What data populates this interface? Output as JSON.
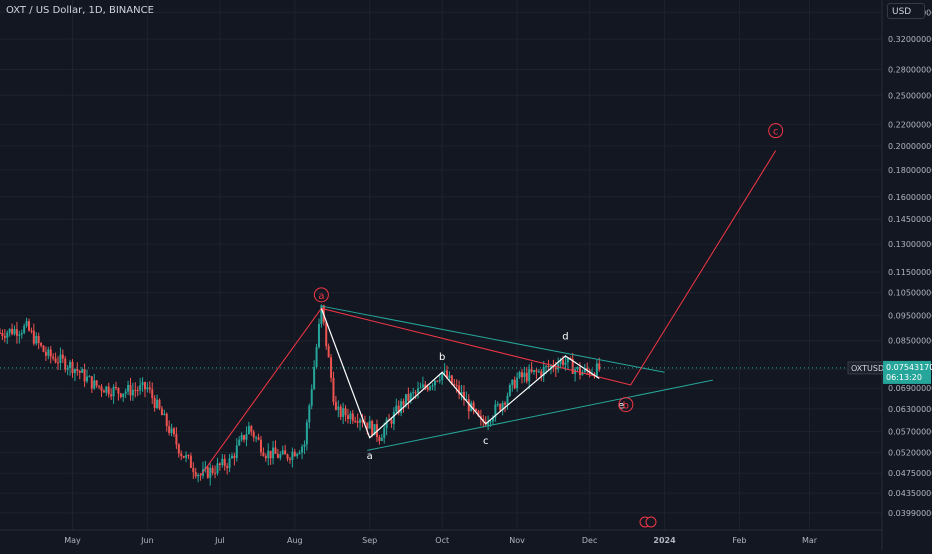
{
  "header": {
    "title": "OXT / US Dollar, 1D, BINANCE",
    "currency_button": "USD"
  },
  "price_tag": {
    "symbol": "OXTUSD",
    "price": "0.07543170",
    "countdown": "06:13:20"
  },
  "colors": {
    "background": "#131722",
    "grid": "#1e222d",
    "up": "#26a69a",
    "down": "#ef5350",
    "wave_pattern": "#ffffff",
    "triangle_lines": "#26a69a",
    "projection": "#f23645",
    "price_tag": "#26a69a"
  },
  "chart_data": {
    "type": "candlestick",
    "title": "OXT / US Dollar, 1D, BINANCE",
    "y_scale": "log",
    "ylim": [
      0.037,
      0.38
    ],
    "y_ticks": [
      "0.36000000",
      "0.32000000",
      "0.28000000",
      "0.25000000",
      "0.22000000",
      "0.20000000",
      "0.18000000",
      "0.16000000",
      "0.14500000",
      "0.13000000",
      "0.11500000",
      "0.10500000",
      "0.09500000",
      "0.08500000",
      "0.07500000",
      "0.06900000",
      "0.06300000",
      "0.05700000",
      "0.05200000",
      "0.04750000",
      "0.04350000",
      "0.03990000"
    ],
    "x_ticks": [
      "May",
      "Jun",
      "Jul",
      "Aug",
      "Sep",
      "Oct",
      "Nov",
      "Dec",
      "2024",
      "Feb",
      "Mar"
    ],
    "x_range": [
      "2023-04-01",
      "2024-03-31"
    ],
    "price_path": [
      [
        "2023-04-01",
        0.088
      ],
      [
        "2023-04-12",
        0.09
      ],
      [
        "2023-04-20",
        0.08
      ],
      [
        "2023-05-01",
        0.076
      ],
      [
        "2023-05-10",
        0.07
      ],
      [
        "2023-05-20",
        0.068
      ],
      [
        "2023-06-01",
        0.069
      ],
      [
        "2023-06-08",
        0.06
      ],
      [
        "2023-06-15",
        0.052
      ],
      [
        "2023-06-23",
        0.047
      ],
      [
        "2023-07-05",
        0.05
      ],
      [
        "2023-07-13",
        0.058
      ],
      [
        "2023-07-20",
        0.052
      ],
      [
        "2023-07-28",
        0.051
      ],
      [
        "2023-08-05",
        0.054
      ],
      [
        "2023-08-12",
        0.098
      ],
      [
        "2023-08-18",
        0.062
      ],
      [
        "2023-08-28",
        0.061
      ],
      [
        "2023-09-05",
        0.056
      ],
      [
        "2023-09-15",
        0.065
      ],
      [
        "2023-09-25",
        0.07
      ],
      [
        "2023-10-01",
        0.074
      ],
      [
        "2023-10-10",
        0.066
      ],
      [
        "2023-10-17",
        0.059
      ],
      [
        "2023-10-25",
        0.064
      ],
      [
        "2023-11-01",
        0.072
      ],
      [
        "2023-11-10",
        0.074
      ],
      [
        "2023-11-20",
        0.078
      ],
      [
        "2023-11-27",
        0.074
      ],
      [
        "2023-12-05",
        0.075
      ]
    ],
    "annotations": {
      "labels": [
        {
          "text": "a",
          "date": "2023-08-12",
          "price": 0.104,
          "circled": true
        },
        {
          "text": "a",
          "date": "2023-09-01",
          "price": 0.0515,
          "circled": false
        },
        {
          "text": "b",
          "date": "2023-10-01",
          "price": 0.0795,
          "circled": false
        },
        {
          "text": "c",
          "date": "2023-10-19",
          "price": 0.055,
          "circled": false
        },
        {
          "text": "d",
          "date": "2023-11-21",
          "price": 0.087,
          "circled": false
        },
        {
          "text": "e",
          "date": "2023-12-14",
          "price": 0.0642,
          "circled": false
        },
        {
          "text": "b",
          "date": "2023-12-16",
          "price": 0.0642,
          "circled": true
        },
        {
          "text": "c",
          "date": "2024-02-16",
          "price": 0.214,
          "circled": true
        }
      ],
      "abcde_wave": [
        [
          "2023-08-12",
          0.098
        ],
        [
          "2023-09-01",
          0.0555
        ],
        [
          "2023-10-01",
          0.074
        ],
        [
          "2023-10-19",
          0.059
        ],
        [
          "2023-11-21",
          0.0795
        ],
        [
          "2023-12-05",
          0.072
        ]
      ],
      "red_path": [
        [
          "2023-06-23",
          0.047
        ],
        [
          "2023-08-12",
          0.098
        ],
        [
          "2023-12-18",
          0.07
        ],
        [
          "2024-02-16",
          0.196
        ]
      ],
      "upper_trendline": [
        [
          "2023-08-12",
          0.099
        ],
        [
          "2024-01-01",
          0.074
        ]
      ],
      "lower_trendline": [
        [
          "2023-08-31",
          0.0525
        ],
        [
          "2024-01-21",
          0.0715
        ]
      ]
    }
  }
}
